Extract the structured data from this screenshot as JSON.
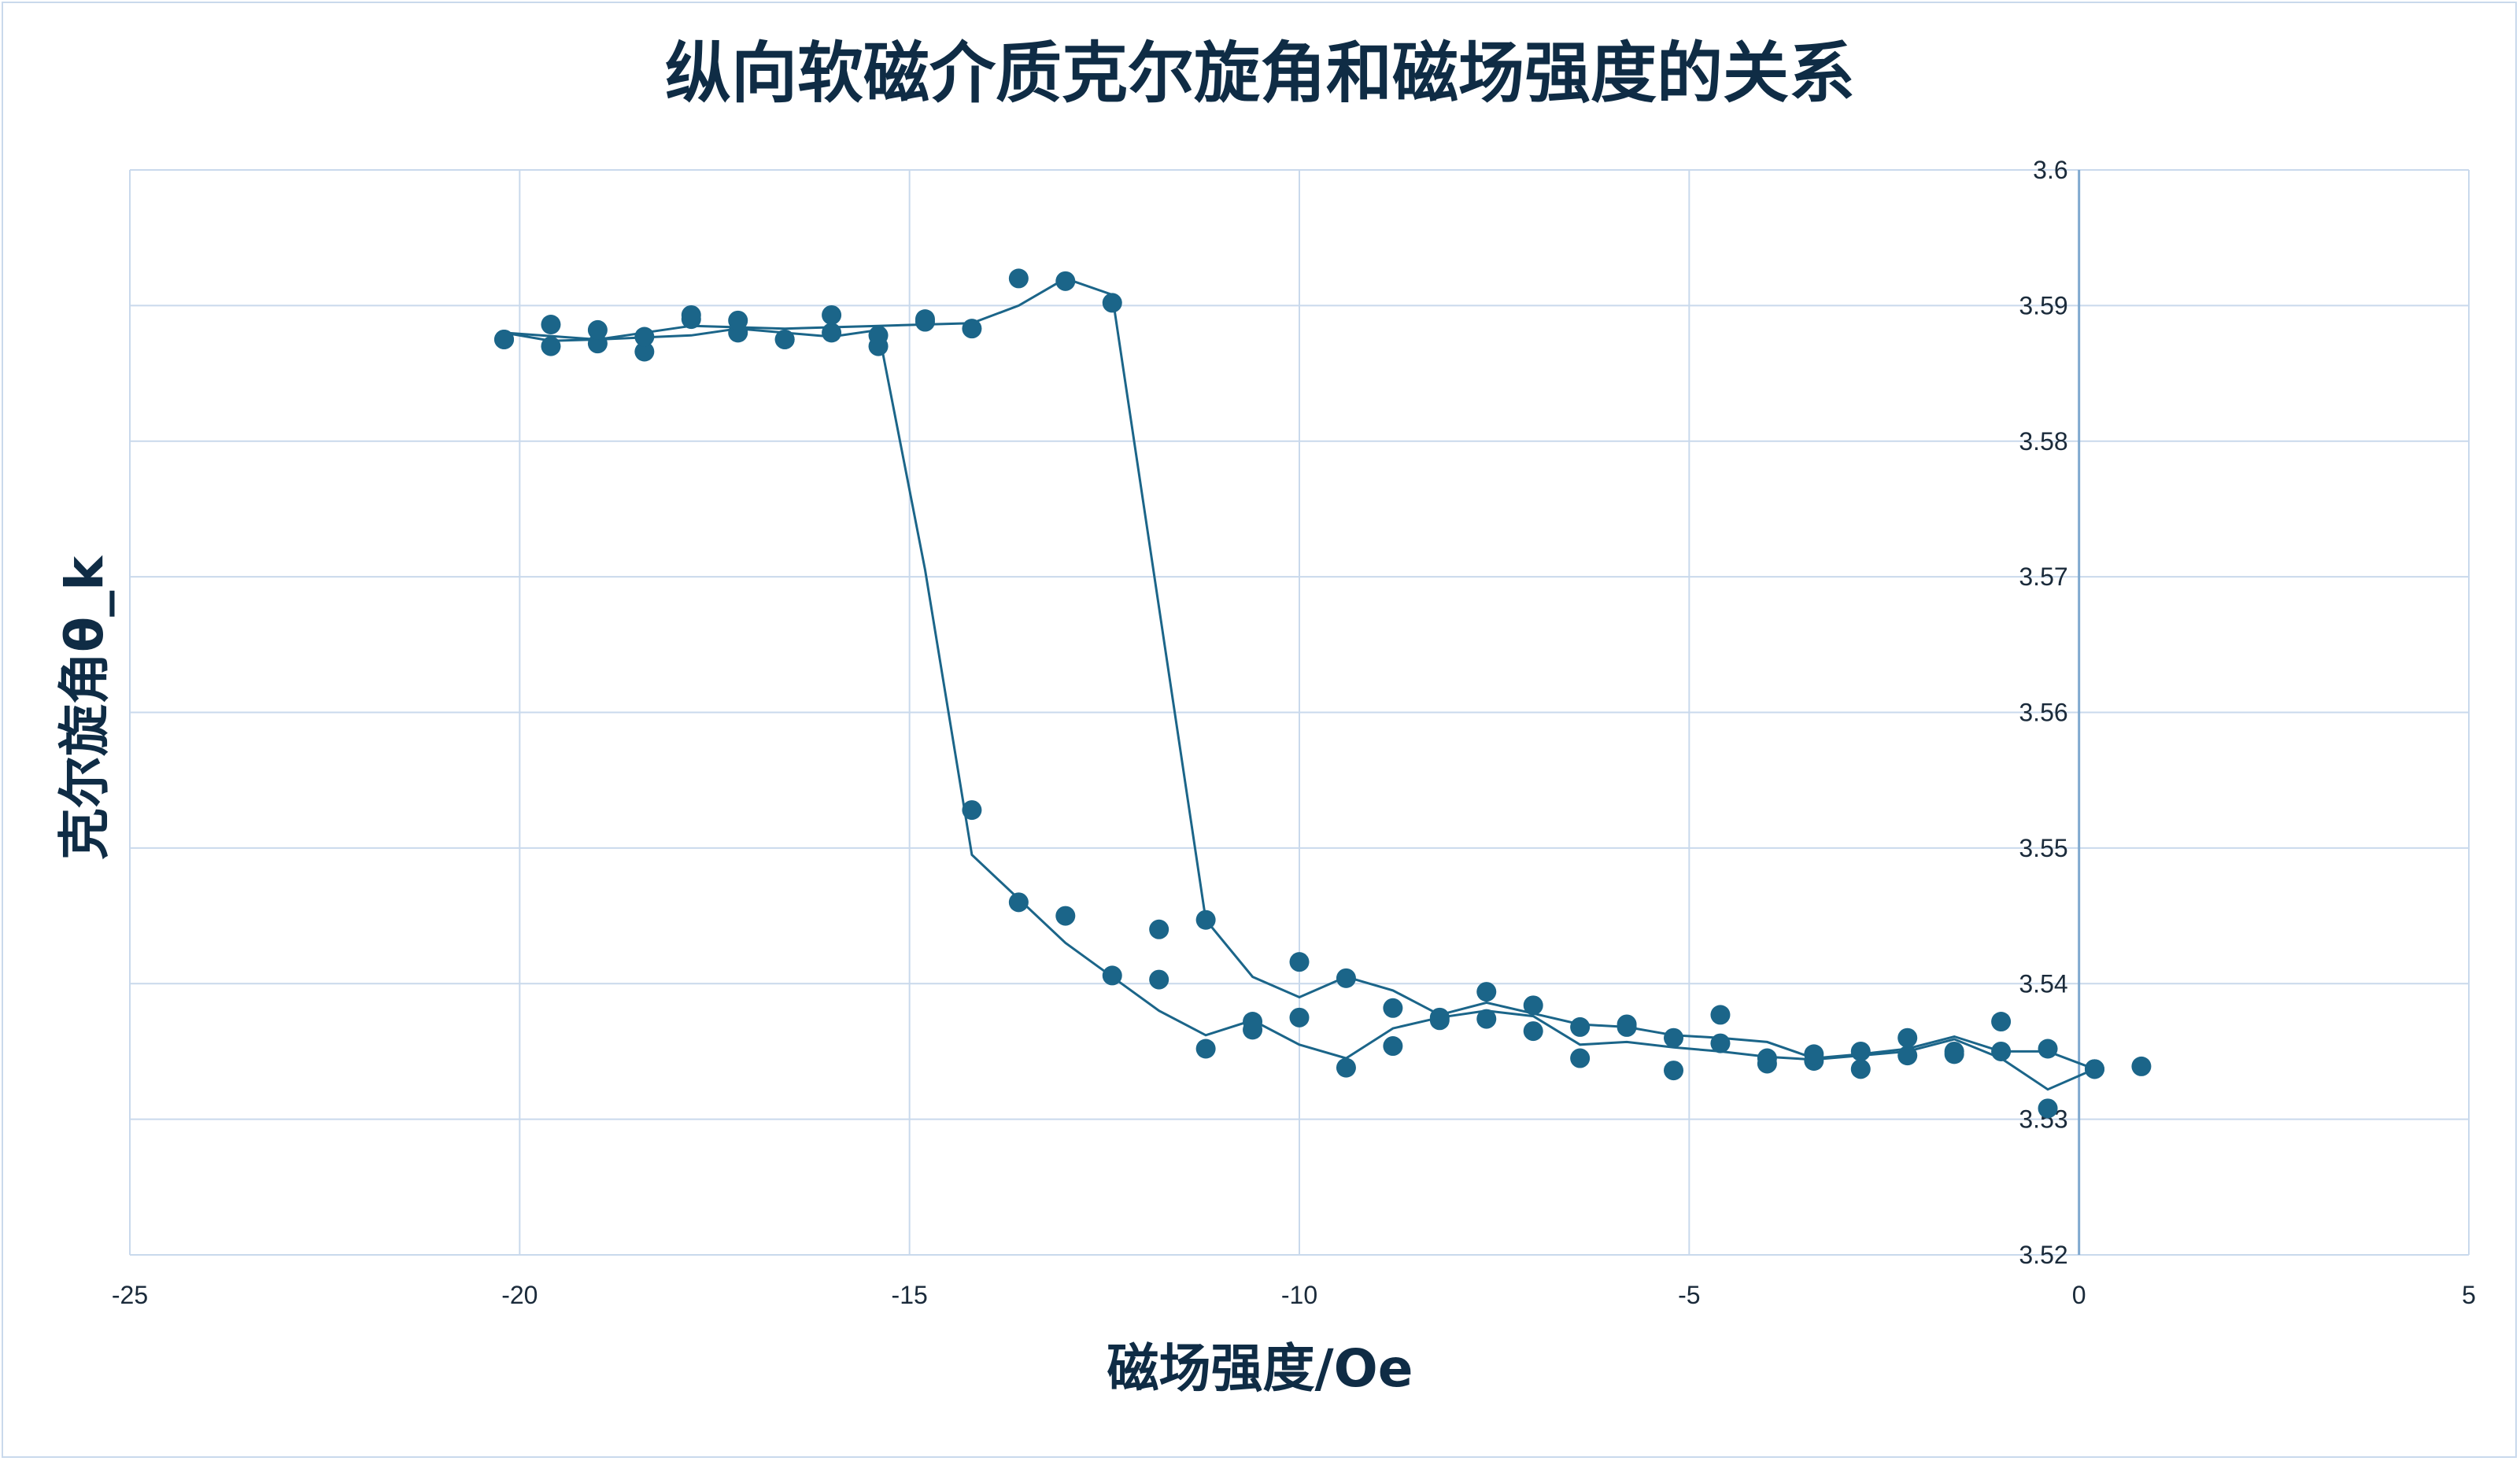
{
  "chart_data": {
    "type": "scatter",
    "title": "纵向软磁介质克尔旋角和磁场强度的关系",
    "xlabel": "磁场强度/Oe",
    "ylabel": "克尔旋角θ_k",
    "xlim": [
      -25,
      5
    ],
    "ylim": [
      3.52,
      3.6
    ],
    "xticks": [
      -25,
      -20,
      -15,
      -10,
      -5,
      0,
      5
    ],
    "yticks": [
      3.52,
      3.53,
      3.54,
      3.55,
      3.56,
      3.57,
      3.58,
      3.59,
      3.6
    ],
    "ytick_labels": [
      "3.52",
      "3.53",
      "3.54",
      "3.55",
      "3.56",
      "3.57",
      "3.58",
      "3.59",
      "3.6"
    ],
    "grid": true,
    "legend": "none",
    "colors": {
      "marker": "#1b6589",
      "line": "#1b6589",
      "grid": "#c9d9ec",
      "yaxis": "#7fa9cf"
    },
    "series": [
      {
        "points": [
          [
            -20.2,
            3.5875
          ],
          [
            -19.6,
            3.587
          ],
          [
            -19.0,
            3.5872
          ],
          [
            -18.4,
            3.5866
          ],
          [
            -17.8,
            3.589
          ],
          [
            -17.2,
            3.588
          ],
          [
            -16.6,
            3.5875
          ],
          [
            -16.0,
            3.588
          ],
          [
            -15.4,
            3.587
          ],
          [
            -14.8,
            3.589
          ],
          [
            -14.2,
            3.5528
          ],
          [
            -13.6,
            3.546
          ],
          [
            -13.0,
            3.545
          ],
          [
            -12.4,
            3.5406
          ],
          [
            -11.8,
            3.5403
          ],
          [
            -11.2,
            3.5352
          ],
          [
            -10.6,
            3.5366
          ],
          [
            -10.0,
            3.5375
          ],
          [
            -9.4,
            3.5338
          ],
          [
            -8.8,
            3.5354
          ],
          [
            -8.2,
            3.5373
          ],
          [
            -7.6,
            3.5374
          ],
          [
            -7.0,
            3.5365
          ],
          [
            -6.4,
            3.5345
          ],
          [
            -5.8,
            3.5368
          ],
          [
            -5.2,
            3.5336
          ],
          [
            -4.6,
            3.5356
          ],
          [
            -4.0,
            3.5345
          ],
          [
            -3.4,
            3.5343
          ],
          [
            -2.8,
            3.5337
          ],
          [
            -2.2,
            3.5347
          ],
          [
            -1.6,
            3.5348
          ],
          [
            -1.0,
            3.5372
          ],
          [
            -0.4,
            3.5308
          ],
          [
            0.2,
            3.5337
          ],
          [
            0.8,
            3.5339
          ]
        ]
      },
      {
        "points": [
          [
            0.2,
            3.5337
          ],
          [
            -0.4,
            3.5352
          ],
          [
            -1.0,
            3.535
          ],
          [
            -1.6,
            3.535
          ],
          [
            -2.2,
            3.536
          ],
          [
            -2.8,
            3.535
          ],
          [
            -3.4,
            3.5348
          ],
          [
            -4.0,
            3.5341
          ],
          [
            -4.6,
            3.5377
          ],
          [
            -5.2,
            3.536
          ],
          [
            -5.8,
            3.537
          ],
          [
            -6.4,
            3.5368
          ],
          [
            -7.0,
            3.5384
          ],
          [
            -7.6,
            3.5394
          ],
          [
            -8.2,
            3.5375
          ],
          [
            -8.8,
            3.5382
          ],
          [
            -9.4,
            3.5404
          ],
          [
            -10.0,
            3.5416
          ],
          [
            -10.6,
            3.5372
          ],
          [
            -11.2,
            3.5447
          ],
          [
            -11.8,
            3.544
          ],
          [
            -12.4,
            3.5902
          ],
          [
            -13.0,
            3.5918
          ],
          [
            -13.6,
            3.592
          ],
          [
            -14.2,
            3.5883
          ],
          [
            -14.8,
            3.5888
          ],
          [
            -15.4,
            3.5878
          ],
          [
            -16.0,
            3.5893
          ],
          [
            -16.6,
            3.5875
          ],
          [
            -17.2,
            3.5889
          ],
          [
            -17.8,
            3.5893
          ],
          [
            -18.4,
            3.5877
          ],
          [
            -19.0,
            3.5882
          ],
          [
            -19.6,
            3.5886
          ],
          [
            -20.2,
            3.5875
          ]
        ]
      }
    ],
    "trend_lines": [
      [
        [
          -20.2,
          3.588
        ],
        [
          -19.0,
          3.5875
        ],
        [
          -17.8,
          3.5878
        ],
        [
          -17.2,
          3.5883
        ],
        [
          -16.0,
          3.5877
        ],
        [
          -15.4,
          3.5882
        ],
        [
          -14.8,
          3.5705
        ],
        [
          -14.2,
          3.5495
        ],
        [
          -13.0,
          3.543
        ],
        [
          -11.8,
          3.538
        ],
        [
          -11.2,
          3.5362
        ],
        [
          -10.6,
          3.5373
        ],
        [
          -10.0,
          3.5355
        ],
        [
          -9.4,
          3.5345
        ],
        [
          -8.8,
          3.5367
        ],
        [
          -8.2,
          3.5375
        ],
        [
          -7.6,
          3.538
        ],
        [
          -7.0,
          3.5376
        ],
        [
          -6.4,
          3.5355
        ],
        [
          -5.8,
          3.5357
        ],
        [
          -5.2,
          3.5353
        ],
        [
          -4.6,
          3.535
        ],
        [
          -4.0,
          3.5346
        ],
        [
          -3.4,
          3.5344
        ],
        [
          -2.8,
          3.5347
        ],
        [
          -2.2,
          3.535
        ],
        [
          -1.6,
          3.5359
        ],
        [
          -1.0,
          3.5345
        ],
        [
          -0.4,
          3.5322
        ],
        [
          0.2,
          3.5337
        ]
      ],
      [
        [
          0.2,
          3.5337
        ],
        [
          -0.4,
          3.535
        ],
        [
          -1.0,
          3.535
        ],
        [
          -1.6,
          3.5361
        ],
        [
          -2.2,
          3.5352
        ],
        [
          -2.8,
          3.5348
        ],
        [
          -3.4,
          3.5345
        ],
        [
          -4.0,
          3.5357
        ],
        [
          -4.6,
          3.536
        ],
        [
          -5.2,
          3.5362
        ],
        [
          -5.8,
          3.5368
        ],
        [
          -6.4,
          3.537
        ],
        [
          -7.0,
          3.5378
        ],
        [
          -7.6,
          3.5386
        ],
        [
          -8.2,
          3.5377
        ],
        [
          -8.8,
          3.5395
        ],
        [
          -9.4,
          3.5405
        ],
        [
          -10.0,
          3.539
        ],
        [
          -10.6,
          3.5405
        ],
        [
          -11.2,
          3.5447
        ],
        [
          -12.4,
          3.5908
        ],
        [
          -13.0,
          3.592
        ],
        [
          -13.6,
          3.59
        ],
        [
          -14.2,
          3.5887
        ],
        [
          -15.4,
          3.5885
        ],
        [
          -16.6,
          3.5883
        ],
        [
          -17.8,
          3.5885
        ],
        [
          -19.0,
          3.5875
        ],
        [
          -19.6,
          3.5874
        ],
        [
          -20.2,
          3.588
        ]
      ]
    ]
  }
}
